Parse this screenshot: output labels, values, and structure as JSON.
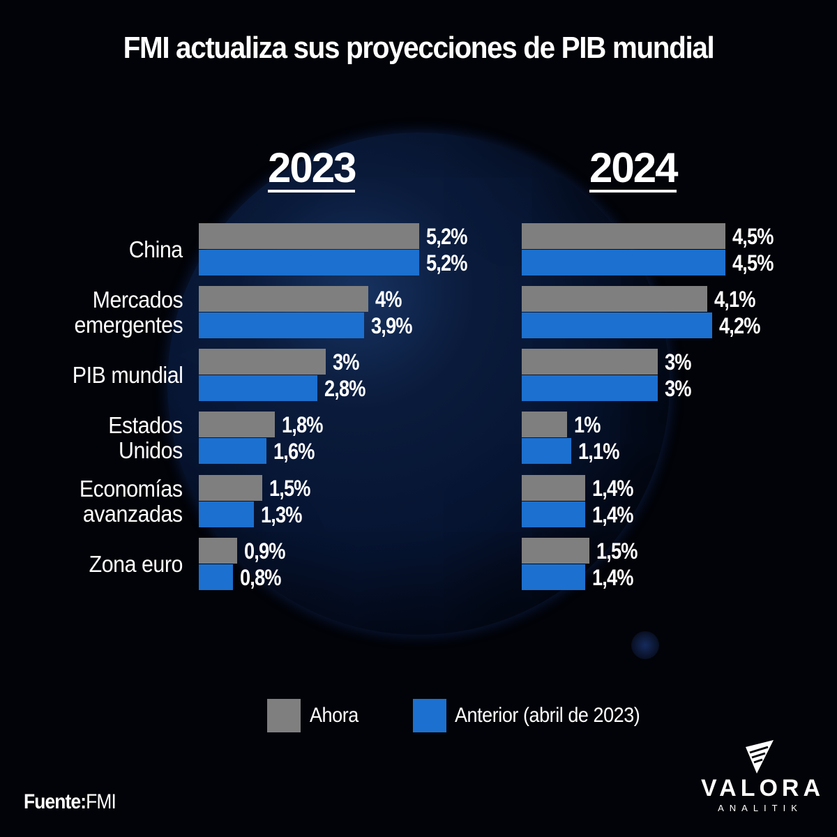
{
  "header": {
    "title": "FMI actualiza sus proyecciones de PIB mundial"
  },
  "years": [
    "2023",
    "2024"
  ],
  "legend": {
    "now": {
      "label": "Ahora",
      "color": "#7f7f7f"
    },
    "prev": {
      "label": "Anterior (abril de 2023)",
      "color": "#1c70cf"
    }
  },
  "categories": [
    {
      "label_lines": [
        "China"
      ],
      "y2023": {
        "now": "5,2%",
        "prev": "5,2%"
      },
      "y2024": {
        "now": "4,5%",
        "prev": "4,5%"
      }
    },
    {
      "label_lines": [
        "Mercados",
        "emergentes"
      ],
      "y2023": {
        "now": "4%",
        "prev": "3,9%"
      },
      "y2024": {
        "now": "4,1%",
        "prev": "4,2%"
      }
    },
    {
      "label_lines": [
        "PIB mundial"
      ],
      "y2023": {
        "now": "3%",
        "prev": "2,8%"
      },
      "y2024": {
        "now": "3%",
        "prev": "3%"
      }
    },
    {
      "label_lines": [
        "Estados",
        "Unidos"
      ],
      "y2023": {
        "now": "1,8%",
        "prev": "1,6%"
      },
      "y2024": {
        "now": "1%",
        "prev": "1,1%"
      }
    },
    {
      "label_lines": [
        "Economías",
        "avanzadas"
      ],
      "y2023": {
        "now": "1,5%",
        "prev": "1,3%"
      },
      "y2024": {
        "now": "1,4%",
        "prev": "1,4%"
      }
    },
    {
      "label_lines": [
        "Zona euro"
      ],
      "y2023": {
        "now": "0,9%",
        "prev": "0,8%"
      },
      "y2024": {
        "now": "1,5%",
        "prev": "1,4%"
      }
    }
  ],
  "footer": {
    "source_label": "Fuente:",
    "source_value": "FMI"
  },
  "logo": {
    "name": "VALORA",
    "sub": "ANALITIK"
  },
  "chart_data": {
    "type": "bar",
    "orientation": "horizontal",
    "title": "FMI actualiza sus proyecciones de PIB mundial",
    "categories": [
      "China",
      "Mercados emergentes",
      "PIB mundial",
      "Estados Unidos",
      "Economías avanzadas",
      "Zona euro"
    ],
    "panels": [
      {
        "title": "2023",
        "series": [
          {
            "name": "Ahora",
            "color": "#7f7f7f",
            "values": [
              5.2,
              4.0,
              3.0,
              1.8,
              1.5,
              0.9
            ]
          },
          {
            "name": "Anterior (abril de 2023)",
            "color": "#1c70cf",
            "values": [
              5.2,
              3.9,
              2.8,
              1.6,
              1.3,
              0.8
            ]
          }
        ]
      },
      {
        "title": "2024",
        "series": [
          {
            "name": "Ahora",
            "color": "#7f7f7f",
            "values": [
              4.5,
              4.1,
              3.0,
              1.0,
              1.4,
              1.5
            ]
          },
          {
            "name": "Anterior (abril de 2023)",
            "color": "#1c70cf",
            "values": [
              4.5,
              4.2,
              3.0,
              1.1,
              1.4,
              1.4
            ]
          }
        ]
      }
    ],
    "unit": "%",
    "legend_position": "bottom",
    "grid": false,
    "source": "Fuente: FMI"
  }
}
